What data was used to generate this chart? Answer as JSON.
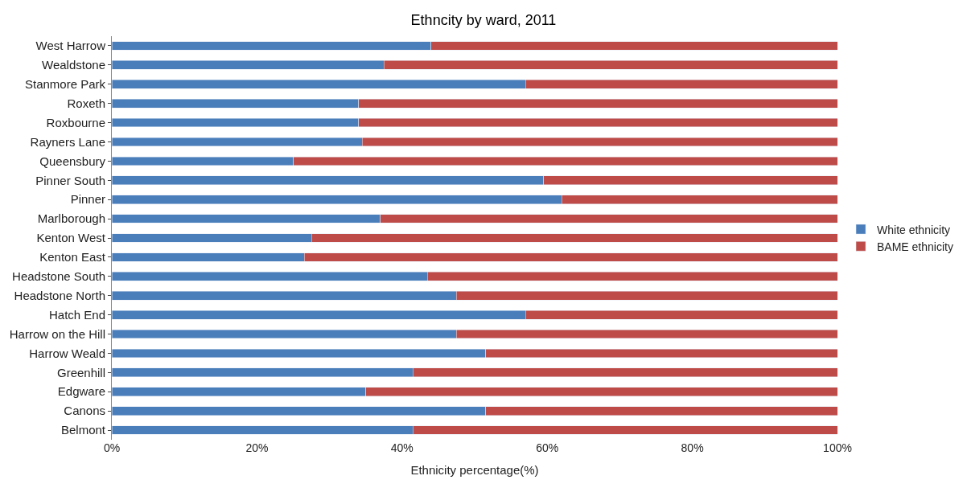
{
  "chart_data": {
    "type": "bar",
    "title": "Ethncity by ward, 2011",
    "xlabel": "Ethnicity percentage(%)",
    "orientation": "horizontal",
    "stacked": true,
    "legend": "right",
    "categories": [
      "West Harrow",
      "Wealdstone",
      "Stanmore Park",
      "Roxeth",
      "Roxbourne",
      "Rayners Lane",
      "Queensbury",
      "Pinner South",
      "Pinner",
      "Marlborough",
      "Kenton West",
      "Kenton East",
      "Headstone South",
      "Headstone North",
      "Hatch End",
      "Harrow on the Hill",
      "Harrow Weald",
      "Greenhill",
      "Edgware",
      "Canons",
      "Belmont"
    ],
    "series": [
      {
        "name": "White ethnicity",
        "color": "#4a7ebb",
        "values": [
          44,
          37.5,
          57,
          34,
          34,
          34.5,
          25,
          59.5,
          62,
          37,
          27.5,
          26.5,
          43.5,
          47.5,
          57,
          47.5,
          51.5,
          41.5,
          35,
          51.5,
          41.5
        ]
      },
      {
        "name": "BAME ethnicity",
        "color": "#be4b48",
        "values": [
          56,
          62.5,
          43,
          66,
          66,
          65.5,
          75,
          40.5,
          38,
          63,
          72.5,
          73.5,
          56.5,
          52.5,
          43,
          52.5,
          48.5,
          58.5,
          65,
          48.5,
          58.5
        ]
      }
    ],
    "xlim": [
      0,
      100
    ],
    "xticks": [
      {
        "value": 0,
        "label": "0%"
      },
      {
        "value": 20,
        "label": "20%"
      },
      {
        "value": 40,
        "label": "40%"
      },
      {
        "value": 60,
        "label": "60%"
      },
      {
        "value": 80,
        "label": "80%"
      },
      {
        "value": 100,
        "label": "100%"
      }
    ]
  }
}
